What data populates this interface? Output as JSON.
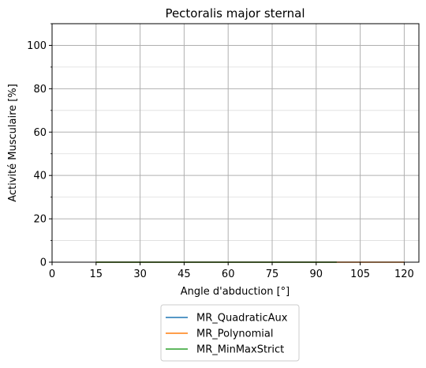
{
  "chart_data": {
    "type": "line",
    "title": "Pectoralis major sternal",
    "xlabel": "Angle d'abduction [°]",
    "ylabel": "Activité Musculaire [%]",
    "xlim": [
      0,
      125
    ],
    "ylim": [
      0,
      110
    ],
    "xticks": [
      0,
      15,
      30,
      45,
      60,
      75,
      90,
      105,
      120
    ],
    "yticks": [
      0,
      20,
      40,
      60,
      80,
      100
    ],
    "yminor_ticks": [
      10,
      30,
      50,
      70,
      90,
      110
    ],
    "grid": true,
    "legend_position": "below plot",
    "series": [
      {
        "name": "MR_QuadraticAux",
        "color": "#1f77b4",
        "x": [
          15,
          97
        ],
        "y": [
          0,
          0
        ]
      },
      {
        "name": "MR_Polynomial",
        "color": "#ff7f0e",
        "x": [
          15,
          120
        ],
        "y": [
          0,
          0
        ]
      },
      {
        "name": "MR_MinMaxStrict",
        "color": "#2ca02c",
        "x": [
          15,
          97
        ],
        "y": [
          0,
          0
        ]
      }
    ]
  }
}
